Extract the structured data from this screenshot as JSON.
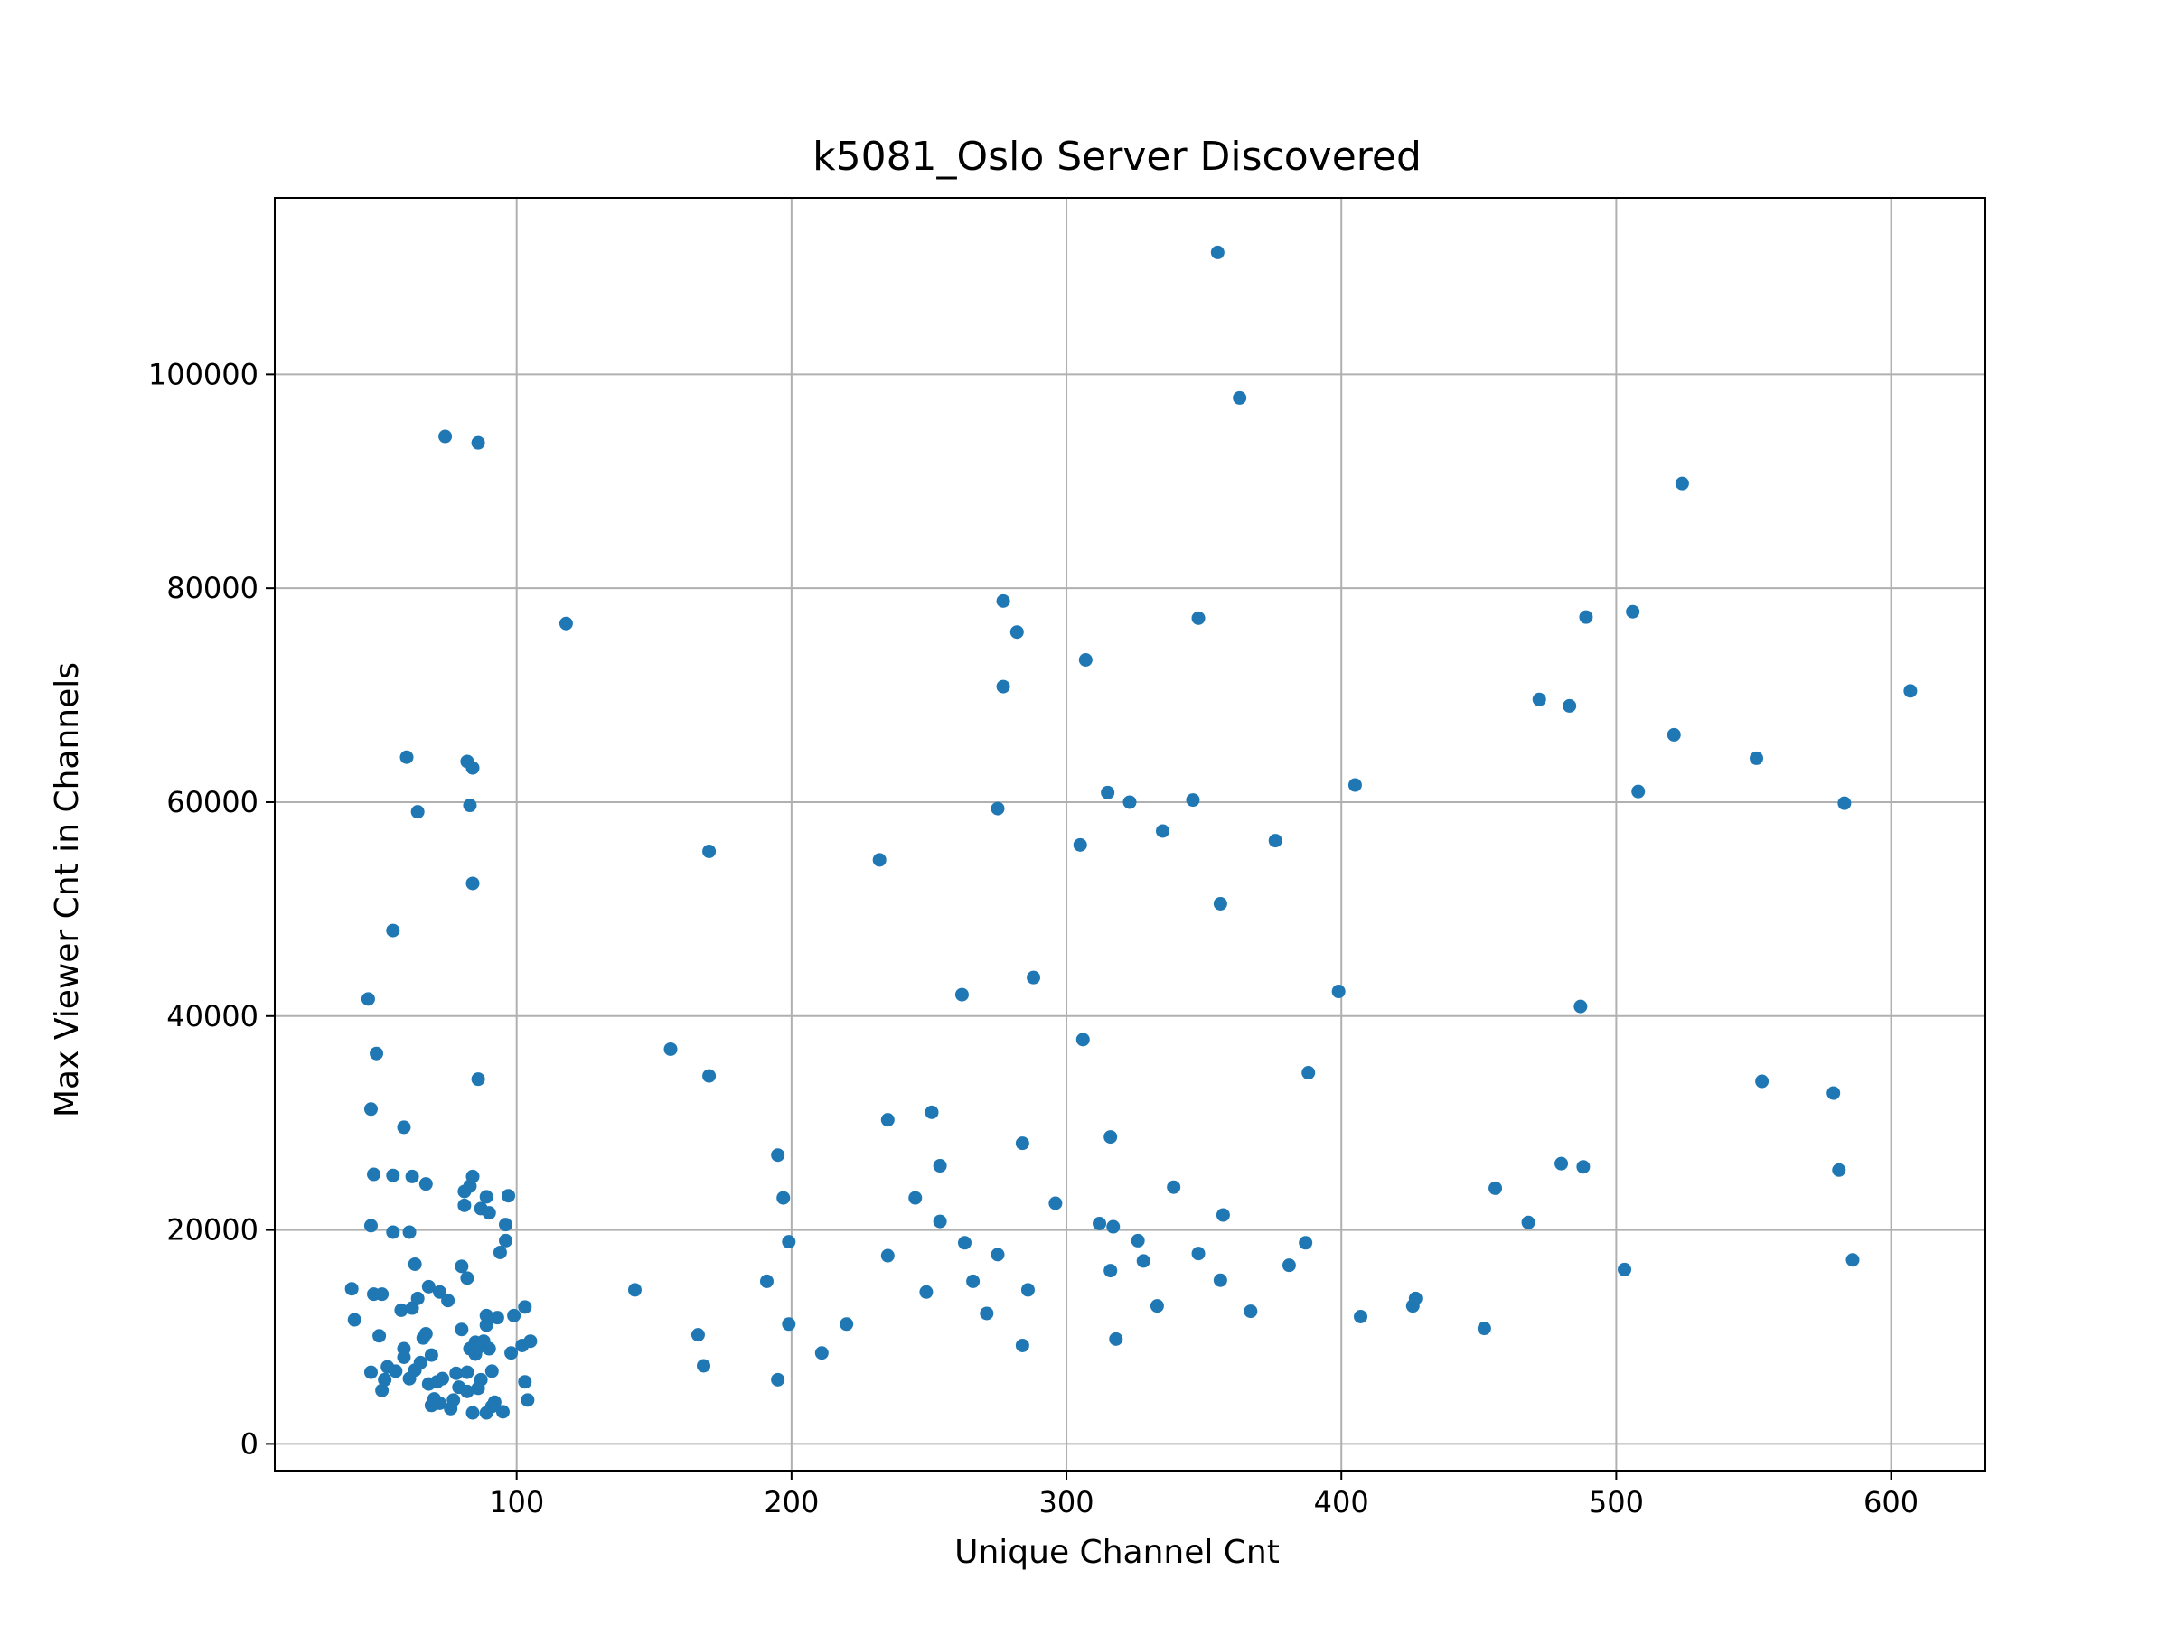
{
  "chart_data": {
    "type": "scatter",
    "title": "k5081_Oslo Server Discovered",
    "xlabel": "Unique Channel Cnt",
    "ylabel": "Max Viewer Cnt in Channels",
    "xlim": [
      12,
      634
    ],
    "ylim": [
      -2500,
      116500
    ],
    "xticks": [
      100,
      200,
      300,
      400,
      500,
      600
    ],
    "yticks": [
      0,
      20000,
      40000,
      60000,
      80000,
      100000
    ],
    "grid": true,
    "point_color": "#1f77b4",
    "points": [
      [
        40,
        14500
      ],
      [
        41,
        11600
      ],
      [
        46,
        41600
      ],
      [
        47,
        6700
      ],
      [
        47,
        20400
      ],
      [
        47,
        31300
      ],
      [
        48,
        14000
      ],
      [
        48,
        25200
      ],
      [
        49,
        36500
      ],
      [
        50,
        10100
      ],
      [
        51,
        5000
      ],
      [
        51,
        14000
      ],
      [
        52,
        6000
      ],
      [
        53,
        7200
      ],
      [
        55,
        48000
      ],
      [
        55,
        25100
      ],
      [
        55,
        19800
      ],
      [
        56,
        6800
      ],
      [
        58,
        12500
      ],
      [
        59,
        29600
      ],
      [
        59,
        8900
      ],
      [
        59,
        8100
      ],
      [
        60,
        64200
      ],
      [
        61,
        19800
      ],
      [
        61,
        6100
      ],
      [
        62,
        12700
      ],
      [
        62,
        25000
      ],
      [
        63,
        16800
      ],
      [
        63,
        6900
      ],
      [
        64,
        13600
      ],
      [
        64,
        59100
      ],
      [
        65,
        7600
      ],
      [
        66,
        9900
      ],
      [
        67,
        10300
      ],
      [
        67,
        24300
      ],
      [
        68,
        5600
      ],
      [
        68,
        14700
      ],
      [
        69,
        3600
      ],
      [
        69,
        8300
      ],
      [
        70,
        4200
      ],
      [
        71,
        5800
      ],
      [
        72,
        14200
      ],
      [
        72,
        3800
      ],
      [
        73,
        6100
      ],
      [
        74,
        94200
      ],
      [
        75,
        13400
      ],
      [
        76,
        3300
      ],
      [
        77,
        4100
      ],
      [
        78,
        6600
      ],
      [
        79,
        5300
      ],
      [
        80,
        10700
      ],
      [
        80,
        16600
      ],
      [
        81,
        22300
      ],
      [
        81,
        23600
      ],
      [
        82,
        6700
      ],
      [
        82,
        4900
      ],
      [
        82,
        63800
      ],
      [
        82,
        15500
      ],
      [
        83,
        24100
      ],
      [
        83,
        59700
      ],
      [
        83,
        8900
      ],
      [
        84,
        25000
      ],
      [
        84,
        52400
      ],
      [
        84,
        63200
      ],
      [
        84,
        2900
      ],
      [
        85,
        8400
      ],
      [
        85,
        9500
      ],
      [
        86,
        93600
      ],
      [
        86,
        34100
      ],
      [
        86,
        5200
      ],
      [
        86,
        9000
      ],
      [
        87,
        22000
      ],
      [
        87,
        6000
      ],
      [
        88,
        9600
      ],
      [
        89,
        23100
      ],
      [
        89,
        12000
      ],
      [
        89,
        11100
      ],
      [
        89,
        2900
      ],
      [
        90,
        21600
      ],
      [
        90,
        8900
      ],
      [
        91,
        6800
      ],
      [
        91,
        3500
      ],
      [
        92,
        3900
      ],
      [
        93,
        11800
      ],
      [
        94,
        17900
      ],
      [
        95,
        3000
      ],
      [
        96,
        20500
      ],
      [
        96,
        19000
      ],
      [
        97,
        23200
      ],
      [
        98,
        8500
      ],
      [
        99,
        12000
      ],
      [
        102,
        9200
      ],
      [
        103,
        5800
      ],
      [
        103,
        12800
      ],
      [
        104,
        4100
      ],
      [
        105,
        9600
      ],
      [
        118,
        76700
      ],
      [
        143,
        14400
      ],
      [
        156,
        36900
      ],
      [
        166,
        10200
      ],
      [
        168,
        7300
      ],
      [
        170,
        55400
      ],
      [
        170,
        34400
      ],
      [
        191,
        15200
      ],
      [
        195,
        27000
      ],
      [
        195,
        6000
      ],
      [
        197,
        23000
      ],
      [
        199,
        18900
      ],
      [
        199,
        11200
      ],
      [
        211,
        8500
      ],
      [
        220,
        11200
      ],
      [
        232,
        54600
      ],
      [
        235,
        30300
      ],
      [
        235,
        17600
      ],
      [
        245,
        23000
      ],
      [
        249,
        14200
      ],
      [
        251,
        31000
      ],
      [
        254,
        26000
      ],
      [
        254,
        20800
      ],
      [
        262,
        42000
      ],
      [
        263,
        18800
      ],
      [
        266,
        15200
      ],
      [
        271,
        12200
      ],
      [
        275,
        59400
      ],
      [
        275,
        17700
      ],
      [
        277,
        78800
      ],
      [
        277,
        70800
      ],
      [
        282,
        75900
      ],
      [
        284,
        28100
      ],
      [
        284,
        9200
      ],
      [
        286,
        14400
      ],
      [
        288,
        43600
      ],
      [
        296,
        22500
      ],
      [
        305,
        56000
      ],
      [
        306,
        37800
      ],
      [
        307,
        73300
      ],
      [
        312,
        20600
      ],
      [
        315,
        60900
      ],
      [
        316,
        16200
      ],
      [
        316,
        28700
      ],
      [
        317,
        20300
      ],
      [
        318,
        9800
      ],
      [
        323,
        60000
      ],
      [
        326,
        19000
      ],
      [
        328,
        17100
      ],
      [
        333,
        12900
      ],
      [
        335,
        57300
      ],
      [
        339,
        24000
      ],
      [
        346,
        60200
      ],
      [
        348,
        77200
      ],
      [
        348,
        17800
      ],
      [
        355,
        111400
      ],
      [
        356,
        50500
      ],
      [
        356,
        15300
      ],
      [
        357,
        21400
      ],
      [
        363,
        97800
      ],
      [
        367,
        12400
      ],
      [
        376,
        56400
      ],
      [
        381,
        16700
      ],
      [
        387,
        18800
      ],
      [
        388,
        34700
      ],
      [
        399,
        42300
      ],
      [
        405,
        61600
      ],
      [
        407,
        11900
      ],
      [
        426,
        12900
      ],
      [
        427,
        13600
      ],
      [
        452,
        10800
      ],
      [
        456,
        23900
      ],
      [
        468,
        20700
      ],
      [
        472,
        69600
      ],
      [
        480,
        26200
      ],
      [
        483,
        69000
      ],
      [
        487,
        40900
      ],
      [
        488,
        25900
      ],
      [
        489,
        77300
      ],
      [
        503,
        16300
      ],
      [
        506,
        77800
      ],
      [
        508,
        61000
      ],
      [
        521,
        66300
      ],
      [
        524,
        89800
      ],
      [
        551,
        64100
      ],
      [
        553,
        33900
      ],
      [
        579,
        32800
      ],
      [
        581,
        25600
      ],
      [
        583,
        59900
      ],
      [
        586,
        17200
      ],
      [
        607,
        70400
      ]
    ]
  }
}
